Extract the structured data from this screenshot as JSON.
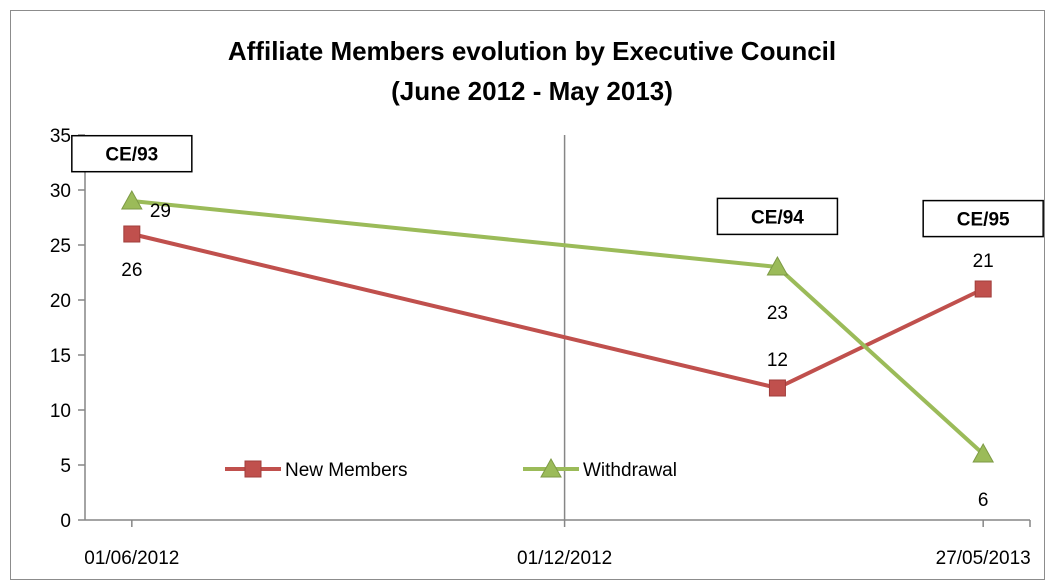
{
  "chart_data": {
    "type": "line",
    "title": [
      "Affiliate Members evolution by Executive Council",
      "(June 2012 - May 2013)"
    ],
    "x": [
      "01/06/2012",
      "01/03/2013",
      "27/05/2013"
    ],
    "x_ticks": [
      "01/06/2012",
      "01/12/2012",
      "27/05/2013"
    ],
    "x_range": [
      "01/06/2012",
      "27/05/2013"
    ],
    "y_ticks": [
      "0",
      "5",
      "10",
      "15",
      "20",
      "25",
      "30",
      "35"
    ],
    "ylim": [
      0,
      35
    ],
    "grid": "vertical line at 01/12/2012",
    "legend_position": "bottom-center",
    "series": [
      {
        "name": "New Members",
        "values": [
          26,
          12,
          21
        ],
        "labels": [
          "26",
          "12",
          "21"
        ],
        "color": "#c0504d",
        "marker": "square"
      },
      {
        "name": "Withdrawal",
        "values": [
          29,
          23,
          6
        ],
        "labels": [
          "29",
          "23",
          "6"
        ],
        "color": "#9bbb59",
        "marker": "triangle"
      }
    ],
    "annotations": [
      {
        "text": "CE/93",
        "x": "01/06/2012",
        "y": 33.3
      },
      {
        "text": "CE/94",
        "x": "01/03/2013",
        "y": 27.6
      },
      {
        "text": "CE/95",
        "x": "27/05/2013",
        "y": 27.4
      }
    ]
  }
}
